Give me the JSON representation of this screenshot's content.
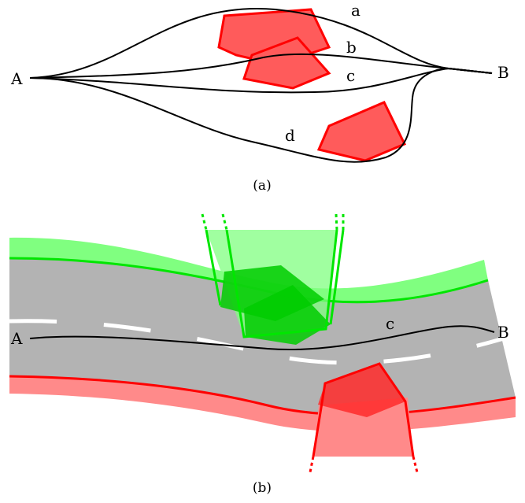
{
  "panel_a": {
    "caption": "(a)",
    "start_label": "A",
    "end_label": "B",
    "path_labels": {
      "a": "a",
      "b": "b",
      "c": "c",
      "d": "d"
    },
    "obstacle_color": "#ff5b5b",
    "obstacle_stroke": "#ff0000"
  },
  "panel_b": {
    "caption": "(b)",
    "start_label": "A",
    "end_label": "B",
    "path_label": "c",
    "road_color": "#b3b3b3",
    "lane_marking_color": "#ffffff",
    "upper_bound_color": "#00e600",
    "lower_bound_color": "#ff0000"
  }
}
